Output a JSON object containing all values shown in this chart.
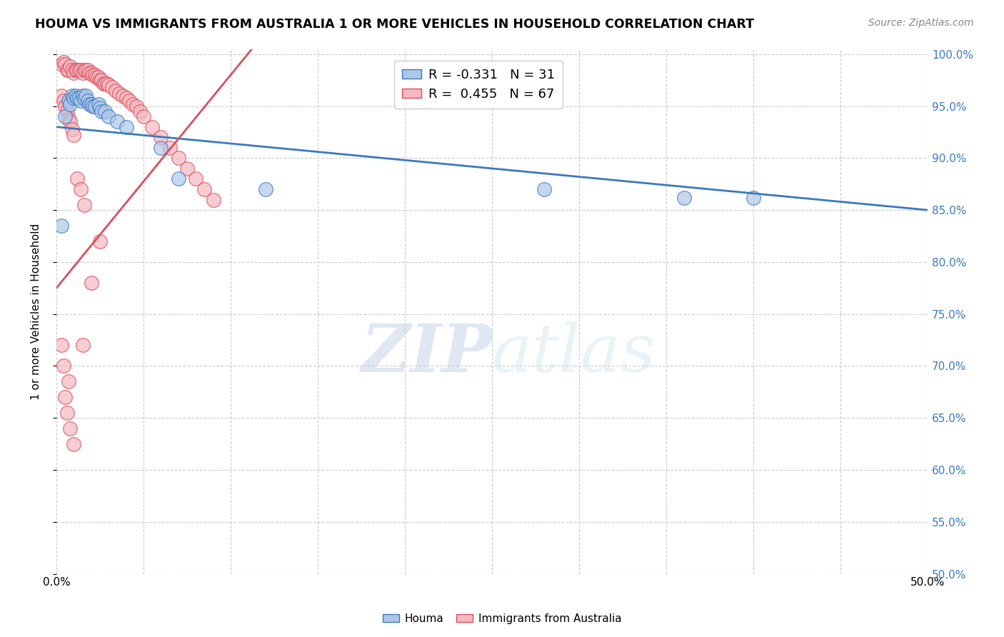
{
  "title": "HOUMA VS IMMIGRANTS FROM AUSTRALIA 1 OR MORE VEHICLES IN HOUSEHOLD CORRELATION CHART",
  "source": "Source: ZipAtlas.com",
  "ylabel": "1 or more Vehicles in Household",
  "xlim": [
    0.0,
    0.5
  ],
  "ylim": [
    0.5,
    1.005
  ],
  "yticks": [
    0.5,
    0.55,
    0.6,
    0.65,
    0.7,
    0.75,
    0.8,
    0.85,
    0.9,
    0.95,
    1.0
  ],
  "ytick_labels": [
    "50.0%",
    "55.0%",
    "60.0%",
    "65.0%",
    "70.0%",
    "75.0%",
    "80.0%",
    "85.0%",
    "90.0%",
    "95.0%",
    "100.0%"
  ],
  "xticks": [
    0.0,
    0.05,
    0.1,
    0.15,
    0.2,
    0.25,
    0.3,
    0.35,
    0.4,
    0.45,
    0.5
  ],
  "blue_R": -0.331,
  "blue_N": 31,
  "pink_R": 0.455,
  "pink_N": 67,
  "blue_color": "#aec6e8",
  "pink_color": "#f4b8c1",
  "blue_line_color": "#3a7abf",
  "pink_line_color": "#d94f5c",
  "legend_houma": "Houma",
  "legend_immigrants": "Immigrants from Australia",
  "blue_line_x0": 0.0,
  "blue_line_y0": 0.93,
  "blue_line_x1": 0.5,
  "blue_line_y1": 0.85,
  "pink_line_x0": 0.0,
  "pink_line_y0": 0.775,
  "pink_line_x1": 0.1,
  "pink_line_y1": 0.98,
  "blue_points_x": [
    0.003,
    0.005,
    0.007,
    0.008,
    0.009,
    0.01,
    0.011,
    0.012,
    0.013,
    0.014,
    0.015,
    0.016,
    0.017,
    0.018,
    0.019,
    0.02,
    0.021,
    0.022,
    0.024,
    0.025,
    0.026,
    0.028,
    0.03,
    0.035,
    0.04,
    0.06,
    0.07,
    0.12,
    0.28,
    0.36,
    0.4
  ],
  "blue_points_y": [
    0.835,
    0.94,
    0.955,
    0.952,
    0.96,
    0.958,
    0.96,
    0.958,
    0.958,
    0.955,
    0.96,
    0.957,
    0.96,
    0.955,
    0.952,
    0.952,
    0.95,
    0.95,
    0.952,
    0.948,
    0.945,
    0.945,
    0.94,
    0.935,
    0.93,
    0.91,
    0.88,
    0.87,
    0.87,
    0.862,
    0.862
  ],
  "pink_points_x": [
    0.003,
    0.004,
    0.005,
    0.006,
    0.007,
    0.008,
    0.009,
    0.01,
    0.011,
    0.012,
    0.013,
    0.014,
    0.015,
    0.016,
    0.017,
    0.018,
    0.019,
    0.02,
    0.021,
    0.022,
    0.023,
    0.024,
    0.025,
    0.026,
    0.027,
    0.028,
    0.029,
    0.03,
    0.032,
    0.034,
    0.036,
    0.038,
    0.04,
    0.042,
    0.044,
    0.046,
    0.048,
    0.05,
    0.055,
    0.06,
    0.065,
    0.07,
    0.075,
    0.08,
    0.085,
    0.09,
    0.003,
    0.004,
    0.005,
    0.006,
    0.007,
    0.008,
    0.009,
    0.01,
    0.012,
    0.014,
    0.016,
    0.003,
    0.004,
    0.007,
    0.005,
    0.006,
    0.008,
    0.01,
    0.015,
    0.02,
    0.025
  ],
  "pink_points_y": [
    0.99,
    0.992,
    0.99,
    0.985,
    0.985,
    0.988,
    0.985,
    0.982,
    0.985,
    0.985,
    0.985,
    0.985,
    0.982,
    0.985,
    0.985,
    0.985,
    0.982,
    0.982,
    0.98,
    0.98,
    0.978,
    0.978,
    0.975,
    0.975,
    0.972,
    0.972,
    0.972,
    0.97,
    0.968,
    0.965,
    0.962,
    0.96,
    0.958,
    0.955,
    0.952,
    0.95,
    0.945,
    0.94,
    0.93,
    0.92,
    0.91,
    0.9,
    0.89,
    0.88,
    0.87,
    0.86,
    0.96,
    0.955,
    0.95,
    0.945,
    0.938,
    0.935,
    0.928,
    0.922,
    0.88,
    0.87,
    0.855,
    0.72,
    0.7,
    0.685,
    0.67,
    0.655,
    0.64,
    0.625,
    0.72,
    0.78,
    0.82
  ]
}
